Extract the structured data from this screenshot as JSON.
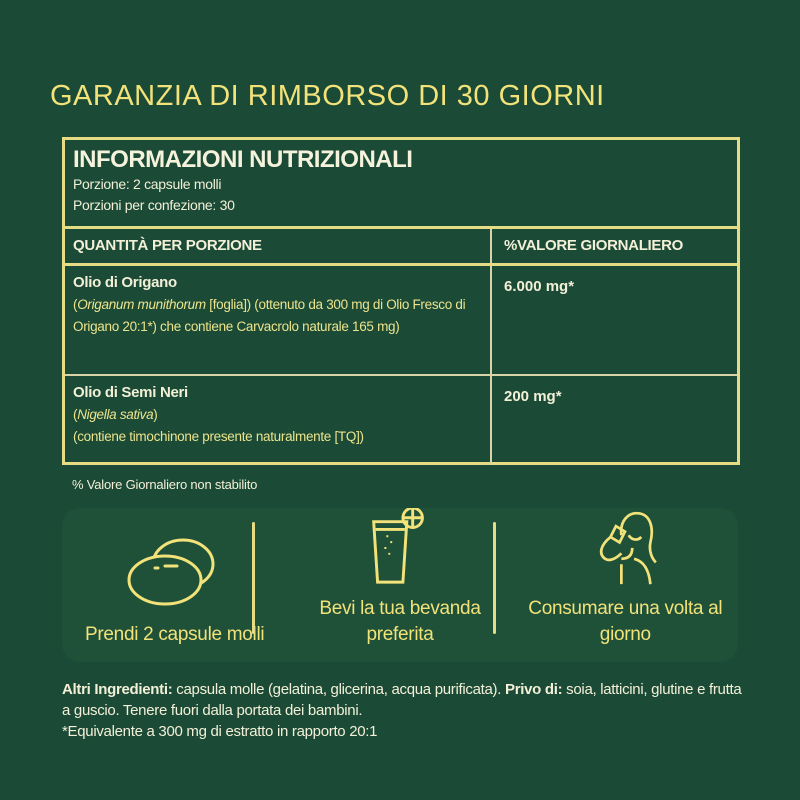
{
  "title": "GARANZIA DI RIMBORSO DI 30 GIORNI",
  "nutrition": {
    "heading": "INFORMAZIONI NUTRIZIONALI",
    "serving": "Porzione: 2 capsule molli",
    "servings_per_pack": "Porzioni per confezione: 30",
    "col_amount": "QUANTITÀ PER PORZIONE",
    "col_dv": "%VALORE GIORNALIERO",
    "rows": [
      {
        "name": "Olio di Origano",
        "latin": "Origanum munithorum",
        "desc_a": " [foglia]) (ottenuto da 300 mg di Olio Fresco di Origano 20:1*) che contiene Carvacrolo naturale 165 mg)",
        "amount": "6.000 mg*"
      },
      {
        "name": "Olio di Semi Neri",
        "latin": "Nigella sativa",
        "desc_a": ")",
        "desc_b": "(contiene timochinone presente naturalmente [TQ])",
        "amount": "200 mg*"
      }
    ],
    "footnote": "% Valore Giornaliero non stabilito"
  },
  "steps": [
    {
      "icon": "capsules-icon",
      "label": "Prendi 2 capsule molli"
    },
    {
      "icon": "glass-icon",
      "label": "Bevi la tua bevanda preferita"
    },
    {
      "icon": "person-drinking-icon",
      "label": "Consumare una volta al giorno"
    }
  ],
  "other": {
    "label1": "Altri Ingredienti:",
    "text1": " capsula molle (gelatina, glicerina, acqua purificata). ",
    "label2": "Privo di:",
    "text2": " soia, latticini, glutine e frutta a guscio. Tenere fuori dalla portata dei bambini.",
    "note": "*Equivalente a 300 mg di estratto in rapporto 20:1"
  },
  "colors": {
    "background": "#1b4a36",
    "accent": "#f2e27a",
    "border": "#e6dc86"
  }
}
